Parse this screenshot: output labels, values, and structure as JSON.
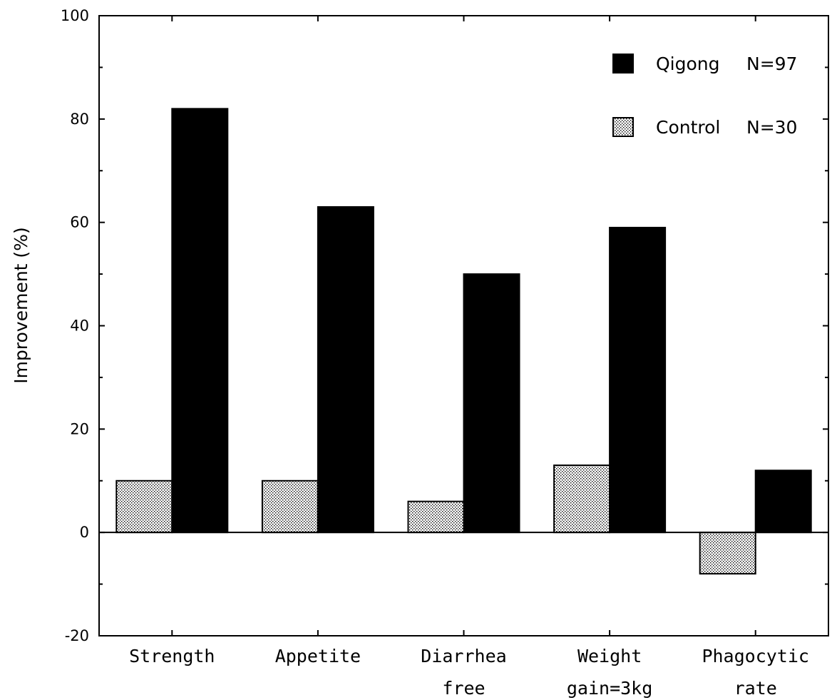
{
  "chart_data": {
    "type": "bar",
    "categories": [
      [
        "Strength"
      ],
      [
        "Appetite"
      ],
      [
        "Diarrhea",
        "free"
      ],
      [
        "Weight",
        "gain=3kg"
      ],
      [
        "Phagocytic",
        "rate"
      ]
    ],
    "series": [
      {
        "name": "Control",
        "n_label": "N=30",
        "pattern": "dotted",
        "values": [
          10,
          10,
          6,
          13,
          -8
        ]
      },
      {
        "name": "Qigong",
        "n_label": "N=97",
        "pattern": "solid",
        "values": [
          82,
          63,
          50,
          59,
          12
        ]
      }
    ],
    "ylabel": "Improvement (%)",
    "xlabel": "",
    "ylim": [
      -20,
      100
    ],
    "yticks": [
      -20,
      0,
      20,
      40,
      60,
      80,
      100
    ],
    "legend_position": "top-right",
    "grid": false,
    "colors": {
      "bar": "#000000",
      "pattern_dot": "#000000",
      "background": "#ffffff"
    }
  }
}
